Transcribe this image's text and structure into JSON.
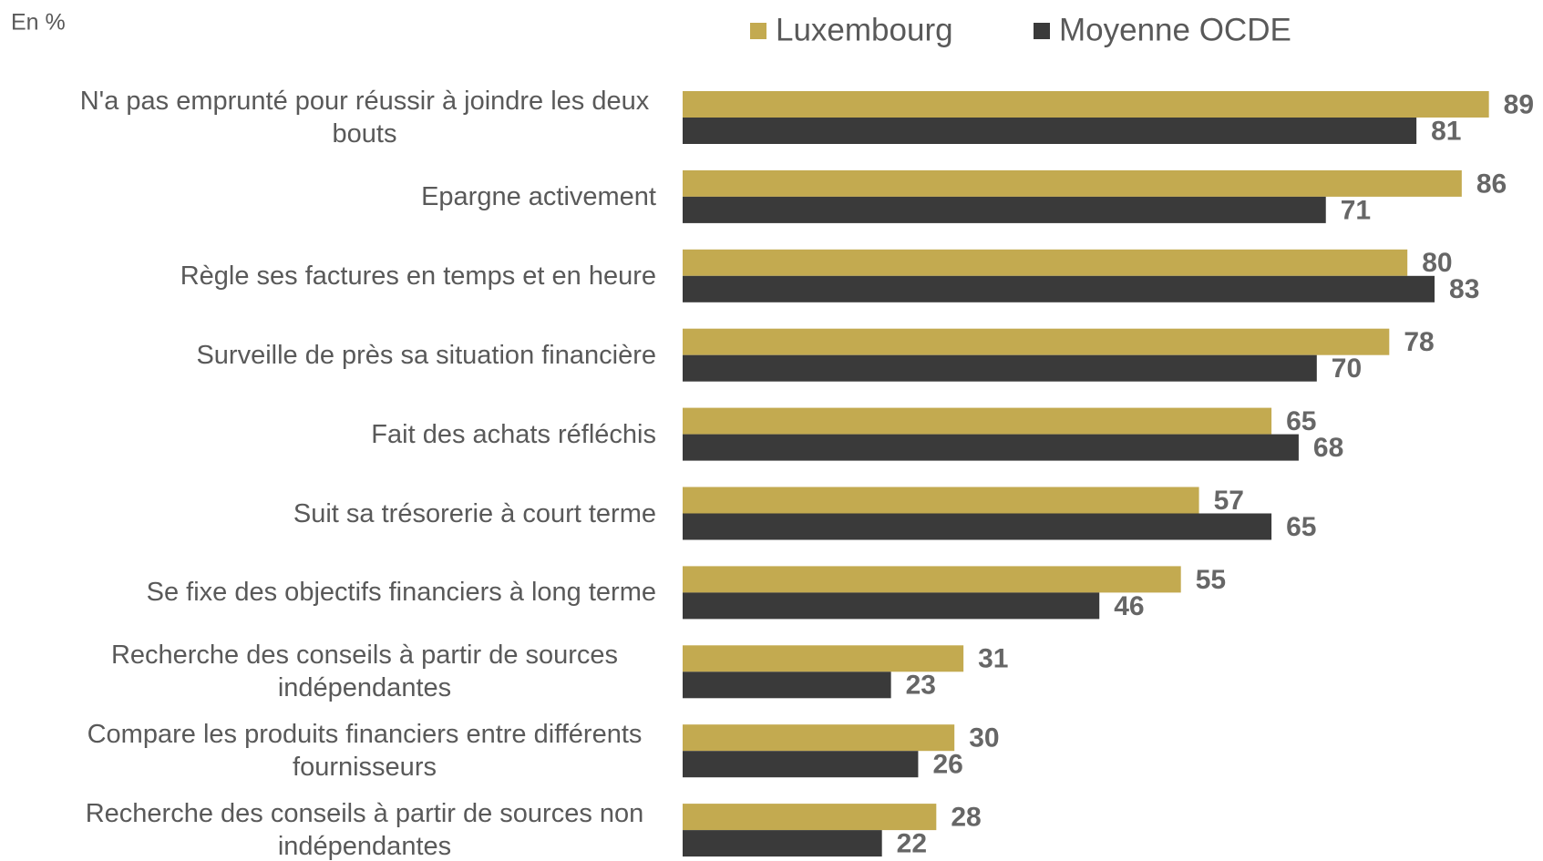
{
  "chart_data": {
    "type": "bar",
    "orientation": "horizontal",
    "subtitle": "En %",
    "categories": [
      "N'a pas emprunté pour réussir à joindre les deux bouts",
      "Epargne activement",
      "Règle ses factures en temps et en heure",
      "Surveille de près sa situation financière",
      "Fait des achats réfléchis",
      "Suit sa trésorerie à court terme",
      "Se fixe des objectifs financiers à long terme",
      "Recherche des conseils à partir de sources indépendantes",
      "Compare les produits financiers entre différents fournisseurs",
      "Recherche des conseils à partir de sources non indépendantes"
    ],
    "series": [
      {
        "name": "Luxembourg",
        "color": "#c3aa50",
        "values": [
          89,
          86,
          80,
          78,
          65,
          57,
          55,
          31,
          30,
          28
        ]
      },
      {
        "name": "Moyenne OCDE",
        "color": "#3a3a3a",
        "values": [
          81,
          71,
          83,
          70,
          68,
          65,
          46,
          23,
          26,
          22
        ]
      }
    ],
    "xlim": [
      0,
      100
    ],
    "legend": "top"
  }
}
